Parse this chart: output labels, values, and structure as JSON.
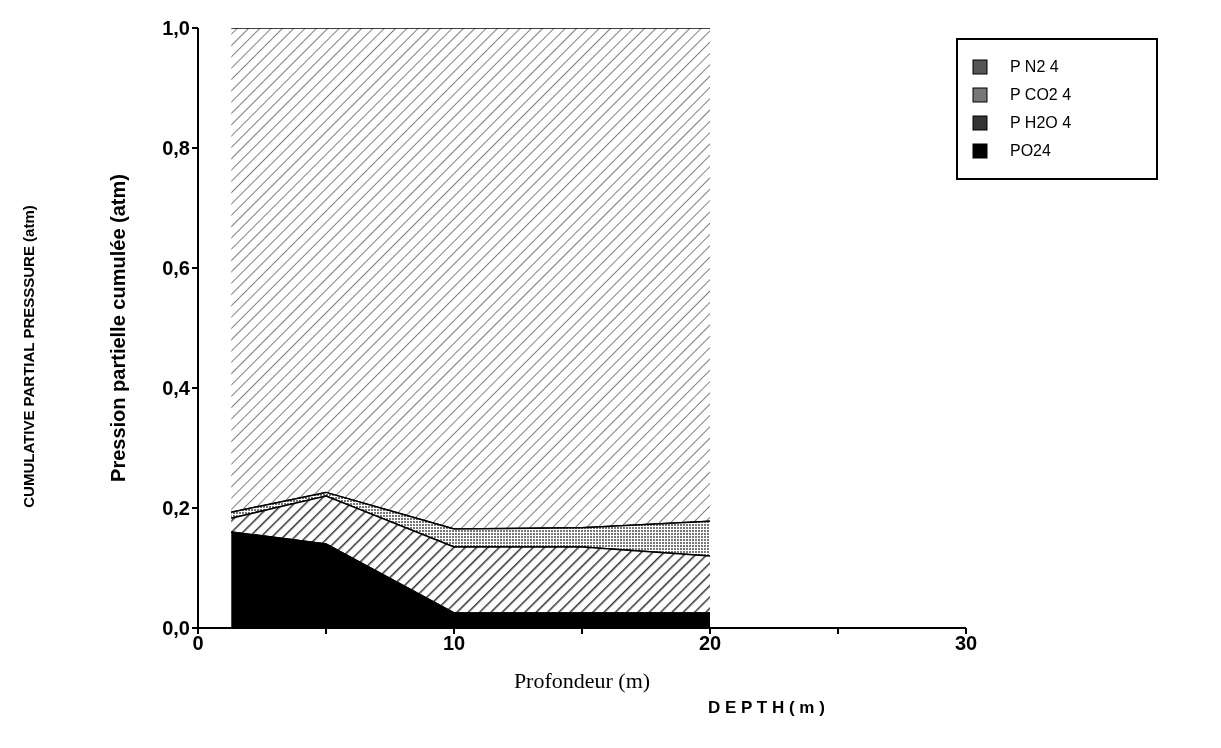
{
  "chart_data": {
    "type": "area",
    "stacked": true,
    "xlabel": "Profondeur  (m)",
    "ylabel": "Pression partielle cumulée (atm)",
    "annotations": [
      "D E P T H ( m )",
      "CUMULATIVE PARTIAL PRESSSURE (atm)"
    ],
    "x": [
      1.3,
      5,
      10,
      15,
      20
    ],
    "series": [
      {
        "name": "PO24",
        "color": "#000000",
        "values": [
          0.16,
          0.14,
          0.025,
          0.025,
          0.025
        ]
      },
      {
        "name": "P H2O 4",
        "color": "#333333",
        "values": [
          0.023,
          0.08,
          0.11,
          0.11,
          0.095
        ]
      },
      {
        "name": "P CO2 4",
        "color": "#777777",
        "values": [
          0.01,
          0.006,
          0.03,
          0.032,
          0.058
        ]
      },
      {
        "name": "P N2 4",
        "color": "#555555",
        "values": [
          0.807,
          0.774,
          0.835,
          0.833,
          0.822
        ]
      }
    ],
    "xlim": [
      0,
      30
    ],
    "xticks": [
      0,
      {
        "value": 5,
        "label": null
      },
      10,
      {
        "value": 15,
        "label": null
      },
      20,
      {
        "value": 25,
        "label": null
      },
      30
    ],
    "ylim": [
      0,
      1
    ],
    "yticks": [
      {
        "value": 0,
        "label": "0,0"
      },
      {
        "value": 0.2,
        "label": "0,2"
      },
      {
        "value": 0.4,
        "label": "0,4"
      },
      {
        "value": 0.6,
        "label": "0,6"
      },
      {
        "value": 0.8,
        "label": "0,8"
      },
      {
        "value": 1,
        "label": "1,0"
      }
    ],
    "grid": false,
    "legend": "top right"
  }
}
